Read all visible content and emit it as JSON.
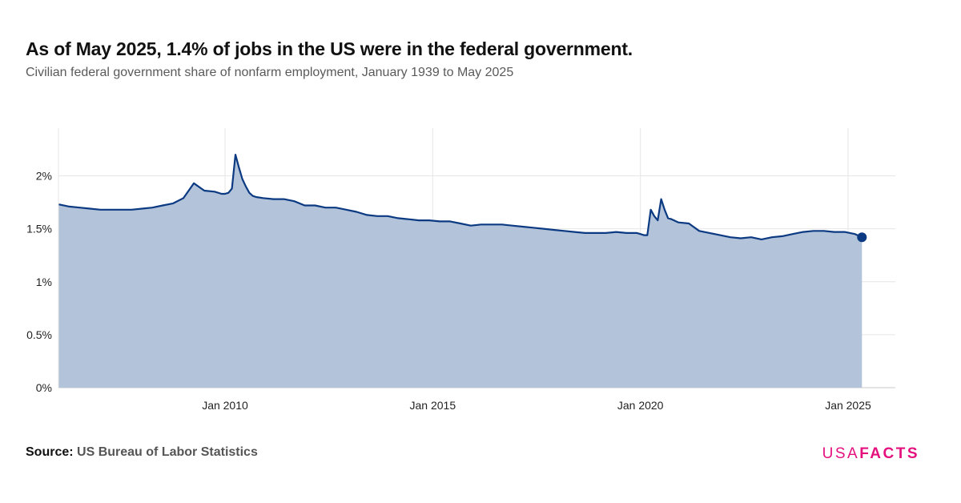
{
  "title": "As of May 2025, 1.4% of jobs in the US were in the federal government.",
  "subtitle": "Civilian federal government share of nonfarm employment, January 1939 to May 2025",
  "source": {
    "label": "Source:",
    "value": "US Bureau of Labor Statistics"
  },
  "logo": {
    "part1": "USA",
    "part2": "FACTS",
    "color": "#e4107e"
  },
  "colors": {
    "line": "#0b3a82",
    "fill": "#b3c3d9",
    "grid": "#e6e6e6",
    "baseline": "#c8c8c8"
  },
  "chart_data": {
    "type": "area",
    "title": "As of May 2025, 1.4% of jobs in the US were in the federal government.",
    "subtitle": "Civilian federal government share of nonfarm employment, January 1939 to May 2025",
    "xlabel": "",
    "ylabel": "",
    "y_unit": "%",
    "ylim": [
      0,
      2.45
    ],
    "xlim": [
      "2006-01",
      "2025-12"
    ],
    "x_ticks": [
      "Jan 2010",
      "Jan 2015",
      "Jan 2020",
      "Jan 2025"
    ],
    "y_ticks": [
      "0%",
      "0.5%",
      "1%",
      "1.5%",
      "2%"
    ],
    "grid": true,
    "legend": "none",
    "highlight_point": {
      "x": "2025-05",
      "y": 1.42
    },
    "series": [
      {
        "x": [
          "2006-01",
          "2006-04",
          "2006-07",
          "2006-10",
          "2007-01",
          "2007-04",
          "2007-07",
          "2007-10",
          "2008-01",
          "2008-04",
          "2008-07",
          "2008-10",
          "2009-01",
          "2009-04",
          "2009-07",
          "2009-10",
          "2009-12",
          "2010-01",
          "2010-02",
          "2010-03",
          "2010-04",
          "2010-05",
          "2010-06",
          "2010-07",
          "2010-08",
          "2010-09",
          "2010-10",
          "2010-12",
          "2011-03",
          "2011-06",
          "2011-09",
          "2011-12",
          "2012-03",
          "2012-06",
          "2012-09",
          "2012-12",
          "2013-03",
          "2013-06",
          "2013-09",
          "2013-12",
          "2014-03",
          "2014-06",
          "2014-09",
          "2014-12",
          "2015-03",
          "2015-06",
          "2015-09",
          "2015-12",
          "2016-03",
          "2016-06",
          "2016-09",
          "2016-12",
          "2017-03",
          "2017-06",
          "2017-09",
          "2017-12",
          "2018-03",
          "2018-06",
          "2018-09",
          "2018-12",
          "2019-03",
          "2019-06",
          "2019-09",
          "2019-12",
          "2020-01",
          "2020-02",
          "2020-03",
          "2020-04",
          "2020-05",
          "2020-06",
          "2020-07",
          "2020-08",
          "2020-09",
          "2020-10",
          "2020-12",
          "2021-03",
          "2021-06",
          "2021-09",
          "2021-12",
          "2022-03",
          "2022-06",
          "2022-09",
          "2022-12",
          "2023-03",
          "2023-06",
          "2023-09",
          "2023-12",
          "2024-03",
          "2024-06",
          "2024-09",
          "2024-12",
          "2025-03",
          "2025-05"
        ],
        "values": [
          1.73,
          1.71,
          1.7,
          1.69,
          1.68,
          1.68,
          1.68,
          1.68,
          1.69,
          1.7,
          1.72,
          1.74,
          1.79,
          1.93,
          1.86,
          1.85,
          1.83,
          1.83,
          1.84,
          1.88,
          2.2,
          2.08,
          1.97,
          1.9,
          1.84,
          1.81,
          1.8,
          1.79,
          1.78,
          1.78,
          1.76,
          1.72,
          1.72,
          1.7,
          1.7,
          1.68,
          1.66,
          1.63,
          1.62,
          1.62,
          1.6,
          1.59,
          1.58,
          1.58,
          1.57,
          1.57,
          1.55,
          1.53,
          1.54,
          1.54,
          1.54,
          1.53,
          1.52,
          1.51,
          1.5,
          1.49,
          1.48,
          1.47,
          1.46,
          1.46,
          1.46,
          1.47,
          1.46,
          1.46,
          1.45,
          1.44,
          1.44,
          1.68,
          1.62,
          1.58,
          1.78,
          1.68,
          1.6,
          1.59,
          1.56,
          1.55,
          1.48,
          1.46,
          1.44,
          1.42,
          1.41,
          1.42,
          1.4,
          1.42,
          1.43,
          1.45,
          1.47,
          1.48,
          1.48,
          1.47,
          1.47,
          1.45,
          1.42
        ]
      }
    ]
  }
}
